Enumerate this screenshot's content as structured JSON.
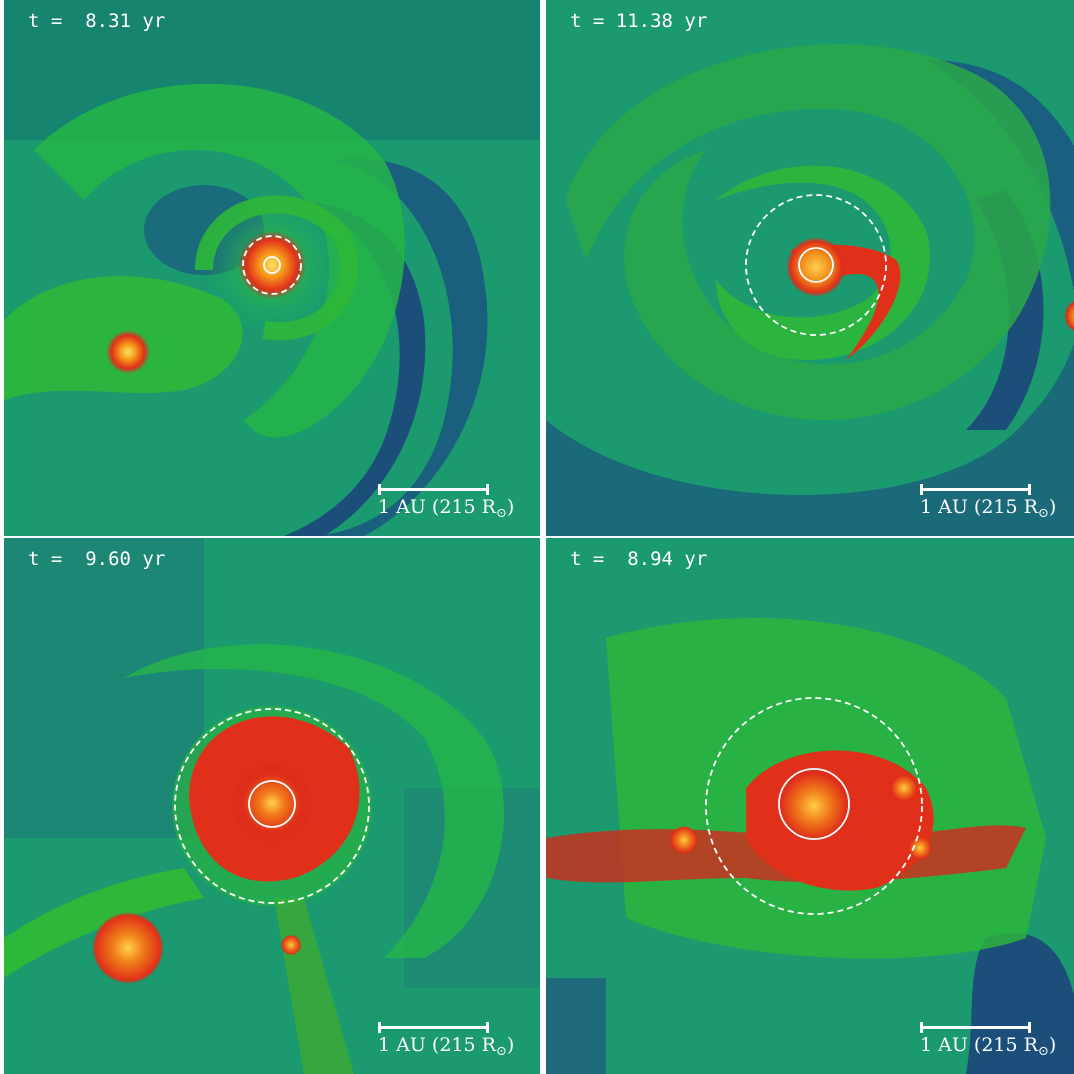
{
  "colors": {
    "background_green": "#1fae5c",
    "dense_green": "#2db83a",
    "void_blue": "#1a5a7a",
    "red": "#d9261a",
    "orange": "#f07a1a",
    "yellow_core": "#ffd24a",
    "marker_white": "#ffffff"
  },
  "scale_bar": {
    "label_main": "1 AU (215 R",
    "label_sun": "⊙",
    "label_close": ")"
  },
  "panels": [
    {
      "time_label": "t =  8.31 yr"
    },
    {
      "time_label": "t = 11.38 yr"
    },
    {
      "time_label": "t =  9.60 yr"
    },
    {
      "time_label": "t =  8.94 yr"
    }
  ]
}
